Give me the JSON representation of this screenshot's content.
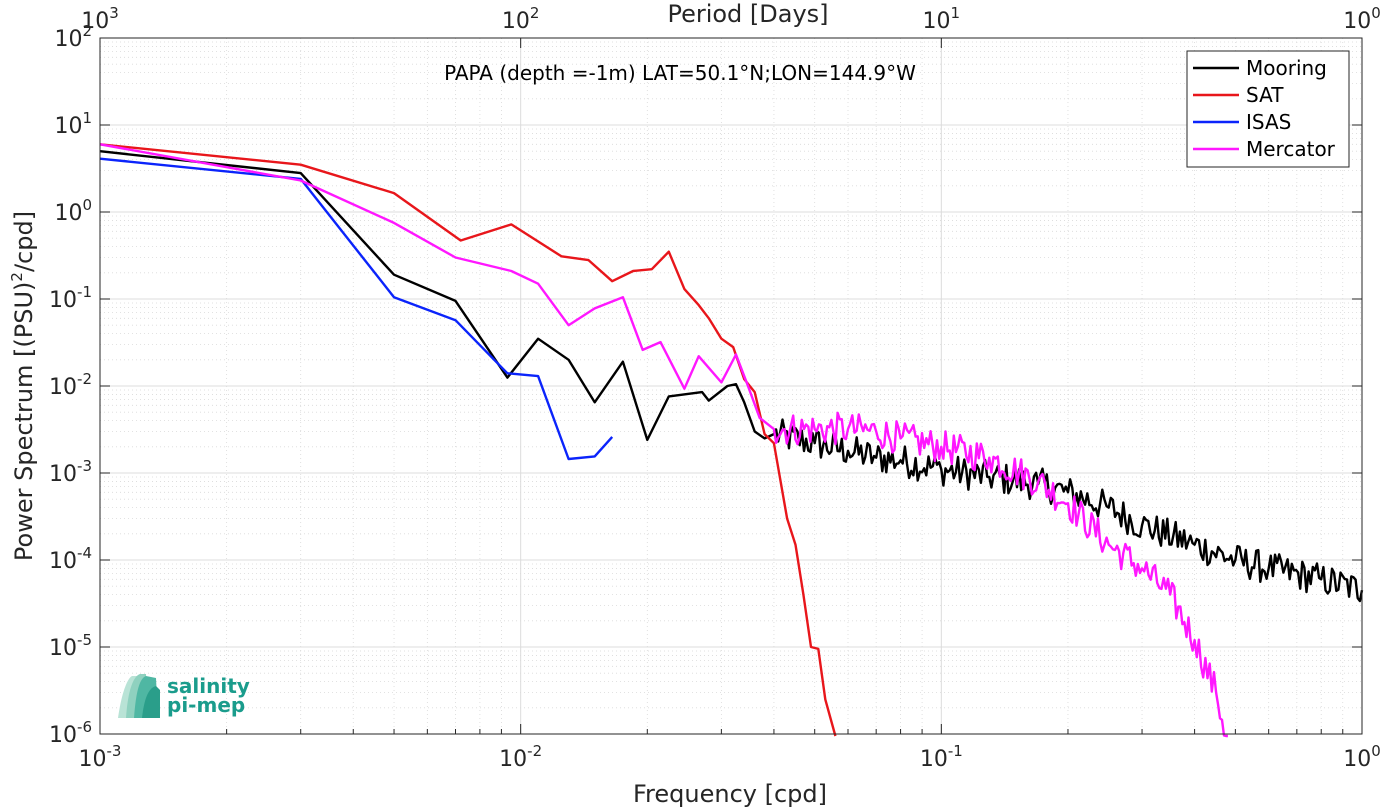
{
  "chart_data": {
    "type": "line",
    "title": "PAPA (depth =-1m) LAT=50.1°N;LON=144.9°W",
    "xlabel": "Frequency [cpd]",
    "ylabel_main": "Power Spectrum [(PSU)",
    "ylabel_sup": "2",
    "ylabel_tail": "/cpd]",
    "top_xlabel": "Period [Days]",
    "x_scale": "log",
    "y_scale": "log",
    "xlim": [
      0.001,
      1
    ],
    "ylim": [
      1e-06,
      100
    ],
    "x_ticks": [
      {
        "value": 0.001,
        "base": "10",
        "exp": "-3"
      },
      {
        "value": 0.01,
        "base": "10",
        "exp": "-2"
      },
      {
        "value": 0.1,
        "base": "10",
        "exp": "-1"
      },
      {
        "value": 1,
        "base": "10",
        "exp": "0"
      }
    ],
    "top_ticks": [
      {
        "value": 1000,
        "base": "10",
        "exp": "3"
      },
      {
        "value": 100,
        "base": "10",
        "exp": "2"
      },
      {
        "value": 10,
        "base": "10",
        "exp": "1"
      },
      {
        "value": 1,
        "base": "10",
        "exp": "0"
      }
    ],
    "y_ticks": [
      {
        "value": 100,
        "base": "10",
        "exp": "2"
      },
      {
        "value": 10,
        "base": "10",
        "exp": "1"
      },
      {
        "value": 1,
        "base": "10",
        "exp": "0"
      },
      {
        "value": 0.1,
        "base": "10",
        "exp": "-1"
      },
      {
        "value": 0.01,
        "base": "10",
        "exp": "-2"
      },
      {
        "value": 0.001,
        "base": "10",
        "exp": "-3"
      },
      {
        "value": 0.0001,
        "base": "10",
        "exp": "-4"
      },
      {
        "value": 1e-05,
        "base": "10",
        "exp": "-5"
      },
      {
        "value": 1e-06,
        "base": "10",
        "exp": "-6"
      }
    ],
    "grid": true,
    "legend_position": "top-right",
    "series": [
      {
        "name": "Mooring",
        "color": "#000000",
        "noise_tail": true,
        "points": [
          [
            0.001,
            5.0
          ],
          [
            0.003,
            2.8
          ],
          [
            0.005,
            0.19
          ],
          [
            0.007,
            0.095
          ],
          [
            0.0093,
            0.0125
          ],
          [
            0.011,
            0.035
          ],
          [
            0.013,
            0.02
          ],
          [
            0.015,
            0.0065
          ],
          [
            0.0175,
            0.019
          ],
          [
            0.02,
            0.0024
          ],
          [
            0.0225,
            0.0076
          ],
          [
            0.027,
            0.0085
          ],
          [
            0.028,
            0.0068
          ],
          [
            0.031,
            0.01
          ],
          [
            0.0325,
            0.0105
          ],
          [
            0.034,
            0.0065
          ],
          [
            0.036,
            0.003
          ],
          [
            0.038,
            0.0025
          ],
          [
            0.04,
            0.0028
          ],
          [
            0.05,
            0.0022
          ],
          [
            0.06,
            0.0018
          ],
          [
            0.07,
            0.0015
          ],
          [
            0.08,
            0.0014
          ],
          [
            0.1,
            0.0011
          ],
          [
            0.13,
            0.0009
          ],
          [
            0.17,
            0.00075
          ],
          [
            0.2,
            0.0006
          ],
          [
            0.25,
            0.0004
          ],
          [
            0.3,
            0.00025
          ],
          [
            0.4,
            0.00015
          ],
          [
            0.5,
            0.0001
          ],
          [
            0.6,
            8e-05
          ],
          [
            0.8,
            6e-05
          ],
          [
            1.0,
            4.5e-05
          ]
        ]
      },
      {
        "name": "SAT",
        "color": "#e8161b",
        "points": [
          [
            0.001,
            6.0
          ],
          [
            0.003,
            3.5
          ],
          [
            0.005,
            1.65
          ],
          [
            0.0072,
            0.47
          ],
          [
            0.0095,
            0.72
          ],
          [
            0.0125,
            0.31
          ],
          [
            0.0145,
            0.28
          ],
          [
            0.0165,
            0.16
          ],
          [
            0.0185,
            0.21
          ],
          [
            0.0205,
            0.22
          ],
          [
            0.0225,
            0.35
          ],
          [
            0.0245,
            0.13
          ],
          [
            0.0265,
            0.085
          ],
          [
            0.028,
            0.06
          ],
          [
            0.03,
            0.035
          ],
          [
            0.032,
            0.028
          ],
          [
            0.034,
            0.012
          ],
          [
            0.036,
            0.0085
          ],
          [
            0.038,
            0.0028
          ],
          [
            0.04,
            0.0022
          ],
          [
            0.043,
            0.0003
          ],
          [
            0.045,
            0.00015
          ],
          [
            0.047,
            4e-05
          ],
          [
            0.049,
            1e-05
          ],
          [
            0.051,
            9.5e-06
          ],
          [
            0.053,
            2.5e-06
          ],
          [
            0.056,
            8e-07
          ]
        ]
      },
      {
        "name": "ISAS",
        "color": "#0b24fb",
        "points": [
          [
            0.001,
            4.1
          ],
          [
            0.003,
            2.4
          ],
          [
            0.005,
            0.105
          ],
          [
            0.007,
            0.057
          ],
          [
            0.0093,
            0.014
          ],
          [
            0.011,
            0.013
          ],
          [
            0.013,
            0.00145
          ],
          [
            0.015,
            0.00155
          ],
          [
            0.0165,
            0.0026
          ]
        ]
      },
      {
        "name": "Mercator",
        "color": "#ff17ff",
        "noise_tail": true,
        "points": [
          [
            0.001,
            6.0
          ],
          [
            0.003,
            2.3
          ],
          [
            0.005,
            0.75
          ],
          [
            0.007,
            0.3
          ],
          [
            0.0095,
            0.21
          ],
          [
            0.011,
            0.15
          ],
          [
            0.013,
            0.05
          ],
          [
            0.015,
            0.078
          ],
          [
            0.0175,
            0.105
          ],
          [
            0.0195,
            0.026
          ],
          [
            0.0215,
            0.032
          ],
          [
            0.0245,
            0.0093
          ],
          [
            0.0265,
            0.022
          ],
          [
            0.03,
            0.011
          ],
          [
            0.0325,
            0.023
          ],
          [
            0.0345,
            0.0108
          ],
          [
            0.037,
            0.0043
          ],
          [
            0.04,
            0.0032
          ],
          [
            0.05,
            0.0032
          ],
          [
            0.06,
            0.0032
          ],
          [
            0.07,
            0.003
          ],
          [
            0.08,
            0.0025
          ],
          [
            0.1,
            0.002
          ],
          [
            0.13,
            0.0015
          ],
          [
            0.17,
            0.0008
          ],
          [
            0.2,
            0.00045
          ],
          [
            0.25,
            0.00015
          ],
          [
            0.3,
            8e-05
          ],
          [
            0.35,
            4e-05
          ],
          [
            0.4,
            1.2e-05
          ],
          [
            0.45,
            3e-06
          ],
          [
            0.48,
            8e-07
          ]
        ]
      }
    ]
  },
  "logo": {
    "line1": "salinity",
    "line2": "pi-mep"
  }
}
